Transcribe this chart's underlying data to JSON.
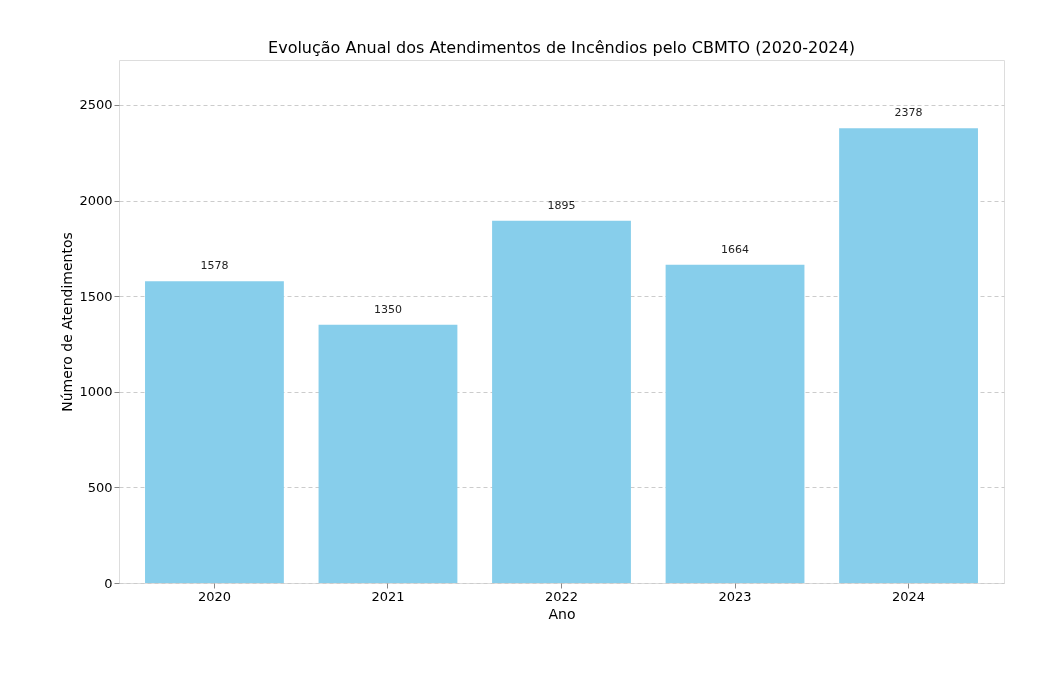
{
  "chart_data": {
    "type": "bar",
    "title": "Evolução Anual dos Atendimentos de Incêndios pelo CBMTO (2020-2024)",
    "xlabel": "Ano",
    "ylabel": "Número de Atendimentos",
    "categories": [
      "2020",
      "2021",
      "2022",
      "2023",
      "2024"
    ],
    "values": [
      1578,
      1350,
      1895,
      1664,
      2378
    ],
    "color": "#87ceeb",
    "ylim": [
      0,
      2735
    ],
    "yticks": [
      0,
      500,
      1000,
      1500,
      2000,
      2500
    ],
    "grid": "y",
    "data_labels": true
  }
}
